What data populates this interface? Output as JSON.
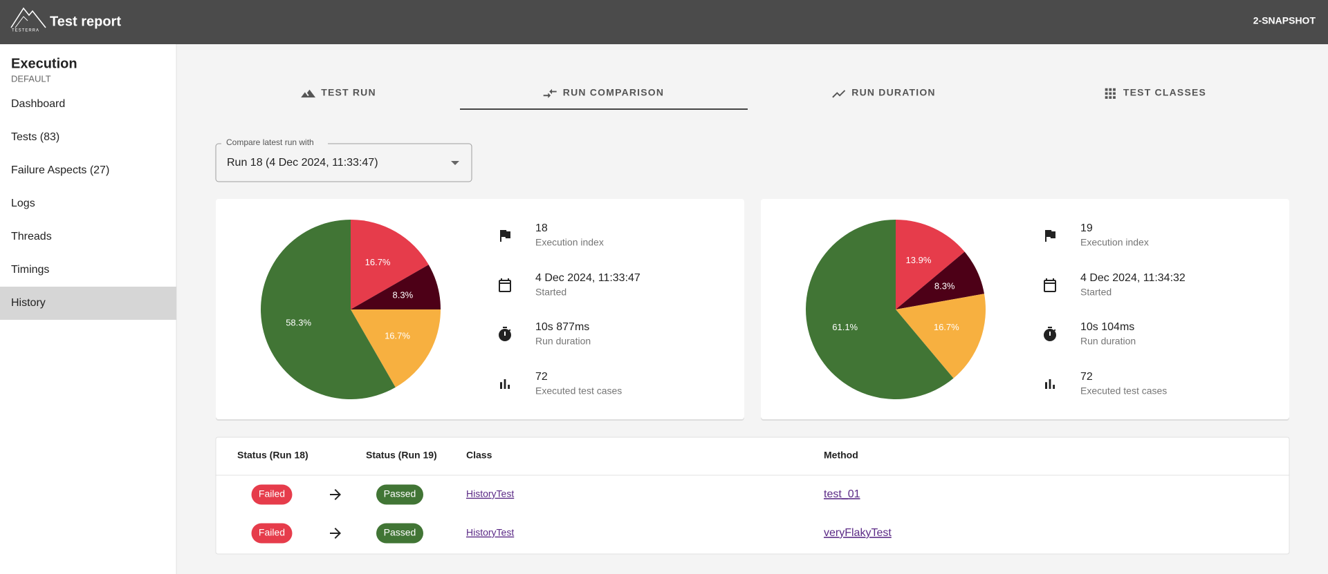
{
  "header": {
    "logo": "TESTERRA",
    "title": "Test report",
    "version": "2-SNAPSHOT"
  },
  "sidebar": {
    "title": "Execution",
    "subtitle": "DEFAULT",
    "items": [
      "Dashboard",
      "Tests (83)",
      "Failure Aspects (27)",
      "Logs",
      "Threads",
      "Timings",
      "History"
    ],
    "active": 6
  },
  "tabs": {
    "items": [
      "TEST RUN",
      "RUN COMPARISON",
      "RUN DURATION",
      "TEST CLASSES"
    ],
    "active": 1
  },
  "select": {
    "label": "Compare latest run with",
    "value": "Run 18 (4 Dec 2024, 11:33:47)"
  },
  "runs": [
    {
      "pie": {
        "type": "pie",
        "values": [
          16.7,
          8.3,
          16.7,
          58.3
        ],
        "value_labels": [
          "16.7%",
          "8.3%",
          "16.7%",
          "58.3%"
        ],
        "colors": [
          "#e63c4b",
          "#4d0017",
          "#f7b040",
          "#417535"
        ]
      },
      "stats": [
        {
          "value": 18,
          "label": "Execution index"
        },
        {
          "value": "4 Dec 2024, 11:33:47",
          "label": "Started"
        },
        {
          "value": "10s 877ms",
          "label": "Run duration"
        },
        {
          "value": 72,
          "label": "Executed test cases"
        }
      ]
    },
    {
      "pie": {
        "type": "pie",
        "values": [
          13.9,
          8.3,
          16.7,
          61.1
        ],
        "value_labels": [
          "13.9%",
          "8.3%",
          "16.7%",
          "61.1%"
        ],
        "colors": [
          "#e63c4b",
          "#4d0017",
          "#f7b040",
          "#417535"
        ]
      },
      "stats": [
        {
          "value": 19,
          "label": "Execution index"
        },
        {
          "value": "4 Dec 2024, 11:34:32",
          "label": "Started"
        },
        {
          "value": "10s 104ms",
          "label": "Run duration"
        },
        {
          "value": 72,
          "label": "Executed test cases"
        }
      ]
    }
  ],
  "table": {
    "headers": [
      "Status (Run 18)",
      "Status (Run 19)",
      "Class",
      "Method"
    ],
    "rows": [
      [
        "Failed",
        "Passed",
        "HistoryTest",
        "test_01"
      ],
      [
        "Failed",
        "Passed",
        "HistoryTest",
        "veryFlakyTest"
      ]
    ],
    "status_colors": {
      "Failed": "#e63c4b",
      "Passed": "#417535"
    }
  }
}
